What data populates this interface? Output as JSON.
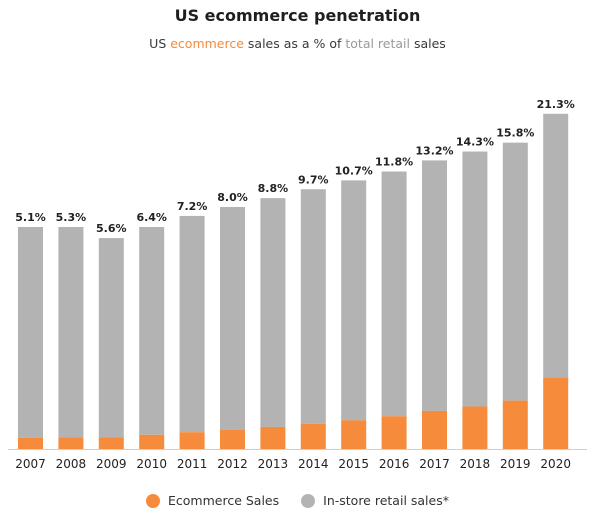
{
  "chart_data": {
    "type": "bar",
    "stacked": true,
    "title": "US ecommerce penetration",
    "subtitle": {
      "prefix": "US ",
      "highlight1": "ecommerce",
      "middle": " sales as a % of ",
      "highlight2": "total retail",
      "suffix": " sales"
    },
    "categories": [
      "2007",
      "2008",
      "2009",
      "2010",
      "2011",
      "2012",
      "2013",
      "2014",
      "2015",
      "2016",
      "2017",
      "2018",
      "2019",
      "2020"
    ],
    "value_labels": [
      "5.1%",
      "5.3%",
      "5.6%",
      "6.4%",
      "7.2%",
      "8.0%",
      "8.8%",
      "9.7%",
      "10.7%",
      "11.8%",
      "13.2%",
      "14.3%",
      "15.8%",
      "21.3%"
    ],
    "series": [
      {
        "name": "Ecommerce Sales",
        "color": "#f58b3b",
        "values": [
          5.1,
          5.3,
          5.6,
          6.4,
          7.2,
          8.0,
          8.8,
          9.7,
          10.7,
          11.8,
          13.2,
          14.3,
          15.8,
          21.3
        ]
      },
      {
        "name": "In-store retail sales*",
        "color": "#b3b3b3",
        "values": [
          94.9,
          94.7,
          94.4,
          93.6,
          92.8,
          92.0,
          91.2,
          90.3,
          89.3,
          88.2,
          86.8,
          85.7,
          84.2,
          78.7
        ]
      }
    ],
    "total_sales_relative": [
      1.0,
      1.0,
      0.95,
      1.0,
      1.05,
      1.09,
      1.13,
      1.17,
      1.21,
      1.25,
      1.3,
      1.34,
      1.38,
      1.51
    ],
    "legend_position": "bottom",
    "grid": false
  }
}
